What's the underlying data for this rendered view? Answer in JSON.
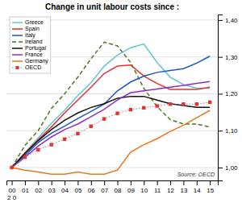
{
  "chart_data": {
    "type": "line",
    "title": "Change in unit labour costs since :",
    "annotations": [
      "Source: OECD",
      "2 0"
    ],
    "x": [
      2000,
      2001,
      2002,
      2003,
      2004,
      2005,
      2006,
      2007,
      2008,
      2009,
      2010,
      2011,
      2012,
      2013,
      2014,
      2015
    ],
    "series": [
      {
        "name": "Greece",
        "color": "#5ec8d2",
        "line_style": "solid",
        "values": [
          1.0,
          1.04,
          1.08,
          1.12,
          1.155,
          1.195,
          1.23,
          1.275,
          1.305,
          1.325,
          1.335,
          1.285,
          1.245,
          1.225,
          1.215,
          1.215
        ]
      },
      {
        "name": "Spain",
        "color": "#e83030",
        "line_style": "solid",
        "values": [
          1.0,
          1.04,
          1.075,
          1.11,
          1.148,
          1.183,
          1.218,
          1.255,
          1.275,
          1.278,
          1.248,
          1.228,
          1.212,
          1.212,
          1.212,
          1.218
        ]
      },
      {
        "name": "Italy",
        "color": "#1a56c4",
        "line_style": "solid",
        "values": [
          1.0,
          1.033,
          1.068,
          1.093,
          1.112,
          1.133,
          1.152,
          1.172,
          1.208,
          1.232,
          1.248,
          1.258,
          1.263,
          1.268,
          1.283,
          1.302
        ]
      },
      {
        "name": "Ireland",
        "color": "#4a7a20",
        "line_style": "dashed",
        "values": [
          1.0,
          1.06,
          1.1,
          1.16,
          1.2,
          1.245,
          1.295,
          1.34,
          1.33,
          1.285,
          1.215,
          1.165,
          1.13,
          1.118,
          1.118,
          1.11
        ]
      },
      {
        "name": "Portugal",
        "color": "#111111",
        "line_style": "solid",
        "values": [
          1.0,
          1.038,
          1.073,
          1.103,
          1.128,
          1.148,
          1.163,
          1.173,
          1.188,
          1.193,
          1.193,
          1.183,
          1.173,
          1.168,
          1.163,
          1.163
        ]
      },
      {
        "name": "France",
        "color": "#8b2fc8",
        "line_style": "solid",
        "values": [
          1.0,
          1.028,
          1.058,
          1.083,
          1.103,
          1.118,
          1.138,
          1.158,
          1.183,
          1.203,
          1.208,
          1.213,
          1.218,
          1.223,
          1.228,
          1.233
        ]
      },
      {
        "name": "Germany",
        "color": "#e87820",
        "line_style": "solid",
        "values": [
          1.0,
          0.993,
          0.988,
          0.982,
          0.982,
          0.988,
          0.982,
          0.982,
          0.993,
          1.042,
          1.062,
          1.078,
          1.098,
          1.115,
          1.135,
          1.155
        ]
      },
      {
        "name": "OECD",
        "color": "#e83030",
        "line_style": "dotted",
        "marker": "square",
        "values": [
          1.0,
          1.028,
          1.048,
          1.062,
          1.077,
          1.092,
          1.112,
          1.132,
          1.147,
          1.157,
          1.162,
          1.167,
          1.172,
          1.172,
          1.172,
          1.177
        ]
      }
    ],
    "xlim": [
      1999.6,
      2015.6
    ],
    "xticks": [
      {
        "value": 2000,
        "label": "00"
      },
      {
        "value": 2001,
        "label": "01"
      },
      {
        "value": 2002,
        "label": "02"
      },
      {
        "value": 2003,
        "label": "03"
      },
      {
        "value": 2004,
        "label": "04"
      },
      {
        "value": 2005,
        "label": "05"
      },
      {
        "value": 2006,
        "label": "06"
      },
      {
        "value": 2007,
        "label": "07"
      },
      {
        "value": 2008,
        "label": "08"
      },
      {
        "value": 2009,
        "label": "09"
      },
      {
        "value": 2010,
        "label": "10"
      },
      {
        "value": 2011,
        "label": "11"
      },
      {
        "value": 2012,
        "label": "12"
      },
      {
        "value": 2013,
        "label": "13"
      },
      {
        "value": 2014,
        "label": "14"
      },
      {
        "value": 2015,
        "label": "15"
      }
    ],
    "ylim": [
      0.965,
      1.415
    ],
    "yticks": [
      {
        "value": 1.0,
        "label": "1,00"
      },
      {
        "value": 1.1,
        "label": "1,10"
      },
      {
        "value": 1.2,
        "label": "1,20"
      },
      {
        "value": 1.3,
        "label": "1,30"
      },
      {
        "value": 1.4,
        "label": "1,40"
      }
    ],
    "grid": true,
    "legend": "upper left"
  }
}
